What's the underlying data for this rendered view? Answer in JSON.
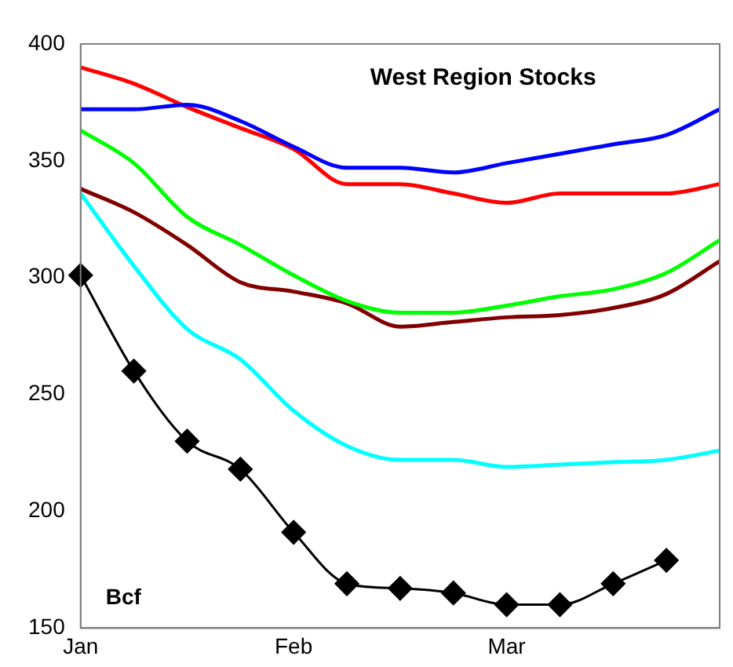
{
  "chart_data": {
    "type": "line",
    "title": "West Region Stocks",
    "annotations": [
      "Bcf"
    ],
    "categories": [
      "Jan",
      null,
      null,
      null,
      "Feb",
      null,
      null,
      null,
      "Mar",
      null,
      null,
      null,
      null
    ],
    "ylim": [
      150,
      400
    ],
    "yticks": [
      150,
      200,
      250,
      300,
      350,
      400
    ],
    "grid": false,
    "legend": false,
    "series": [
      {
        "color": "#0000ff",
        "marker": "none",
        "values": [
          372,
          372,
          374,
          367,
          356,
          347,
          347,
          345,
          349,
          353,
          357,
          361,
          372
        ]
      },
      {
        "color": "#ff0000",
        "marker": "none",
        "values": [
          390,
          383,
          373,
          364,
          355,
          340,
          340,
          336,
          332,
          336,
          336,
          336,
          340
        ]
      },
      {
        "color": "#00ff00",
        "marker": "none",
        "values": [
          363,
          349,
          326,
          314,
          301,
          290,
          285,
          285,
          288,
          292,
          295,
          302,
          316
        ]
      },
      {
        "color": "#800000",
        "marker": "none",
        "values": [
          338,
          328,
          314,
          298,
          294,
          289,
          279,
          281,
          283,
          284,
          287,
          293,
          307
        ]
      },
      {
        "color": "#00ffff",
        "marker": "none",
        "values": [
          336,
          305,
          278,
          265,
          243,
          228,
          222,
          222,
          219,
          220,
          221,
          222,
          226
        ]
      },
      {
        "color": "#000000",
        "marker": "diamond",
        "values": [
          301,
          260,
          230,
          218,
          191,
          169,
          167,
          165,
          160,
          160,
          169,
          179,
          null
        ]
      }
    ]
  }
}
